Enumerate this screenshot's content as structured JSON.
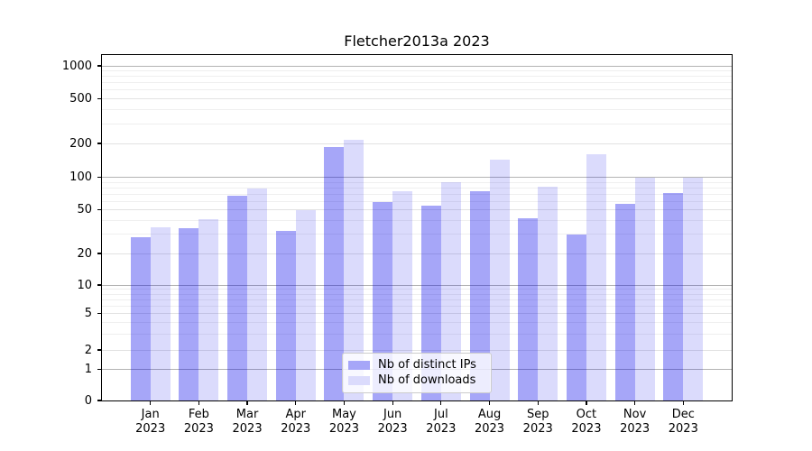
{
  "title": "Fletcher2013a 2023",
  "chart_data": {
    "type": "bar",
    "title": "Fletcher2013a 2023",
    "categories": [
      "Jan",
      "Feb",
      "Mar",
      "Apr",
      "May",
      "Jun",
      "Jul",
      "Aug",
      "Sep",
      "Oct",
      "Nov",
      "Dec"
    ],
    "year": "2023",
    "series": [
      {
        "name": "Nb of distinct IPs",
        "color": "#a6a6f8",
        "bar_color": "rgba(0,0,235,0.35)",
        "values": [
          28,
          34,
          67,
          32,
          185,
          59,
          55,
          74,
          42,
          30,
          57,
          72
        ]
      },
      {
        "name": "Nb of downloads",
        "color": "#dbdbfc",
        "bar_color": "rgba(0,0,235,0.14)",
        "values": [
          35,
          41,
          79,
          50,
          215,
          75,
          91,
          143,
          82,
          160,
          100,
          100
        ]
      }
    ],
    "yscale": "symlog",
    "yticks": [
      0,
      1,
      2,
      5,
      10,
      20,
      50,
      100,
      200,
      500,
      1000
    ],
    "ylim": [
      0,
      1250
    ],
    "xlabel": "",
    "ylabel": "",
    "grid": true,
    "legend_position": "lower center"
  }
}
